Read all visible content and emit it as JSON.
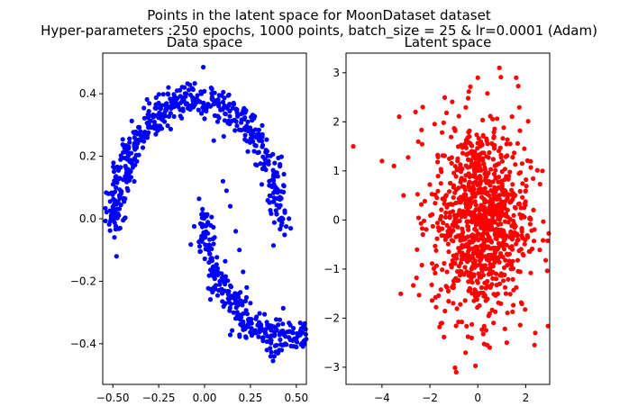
{
  "figure": {
    "suptitle_line1": "Points in the latent space for MoonDataset dataset",
    "suptitle_line2": "Hyper-parameters :250 epochs, 1000 points, batch_size = 25 & lr=0.0001 (Adam)"
  },
  "chart_data": [
    {
      "type": "scatter",
      "title": "Data space",
      "xlabel": "",
      "ylabel": "",
      "xlim": [
        -0.555,
        0.555
      ],
      "ylim": [
        -0.53,
        0.53
      ],
      "xticks": [
        -0.5,
        -0.25,
        0.0,
        0.25,
        0.5
      ],
      "xtick_labels": [
        "−0.50",
        "−0.25",
        "0.00",
        "0.25",
        "0.50"
      ],
      "yticks": [
        -0.4,
        -0.2,
        0.0,
        0.2,
        0.4
      ],
      "ytick_labels": [
        "−0.4",
        "−0.2",
        "0.0",
        "0.2",
        "0.4"
      ],
      "grid": false,
      "color": "#0000ff",
      "description": "Two interleaving half-moons, 1000 points",
      "series": [
        {
          "x": [
            -0.48,
            -0.46,
            -0.44,
            -0.42,
            -0.4,
            -0.38,
            -0.35,
            -0.3,
            -0.25,
            -0.2,
            -0.15,
            -0.1,
            -0.05,
            0.0,
            0.05,
            0.1,
            0.12,
            0.14,
            0.17,
            0.19,
            0.21,
            0.23,
            0.25,
            0.28,
            0.3,
            0.32,
            0.34,
            0.36,
            0.38,
            0.4,
            0.42,
            0.44,
            0.46
          ],
          "y": [
            -0.12,
            -0.03,
            0.06,
            0.14,
            0.21,
            0.24,
            0.28,
            0.33,
            0.37,
            0.4,
            0.41,
            0.4,
            0.37,
            0.32,
            0.25,
            0.12,
            0.09,
            0.04,
            -0.04,
            -0.1,
            -0.17,
            -0.22,
            -0.27,
            -0.32,
            -0.36,
            -0.38,
            -0.42,
            -0.44,
            -0.44,
            -0.43,
            -0.42,
            -0.4,
            -0.38
          ]
        }
      ]
    },
    {
      "type": "scatter",
      "title": "Latent space",
      "xlabel": "",
      "ylabel": "",
      "xlim": [
        -5.5,
        3.0
      ],
      "ylim": [
        -3.35,
        3.4
      ],
      "xticks": [
        -4,
        -2,
        0,
        2
      ],
      "xtick_labels": [
        "−4",
        "−2",
        "0",
        "2"
      ],
      "yticks": [
        -3,
        -2,
        -1,
        0,
        1,
        2,
        3
      ],
      "ytick_labels": [
        "−3",
        "−2",
        "−1",
        "0",
        "1",
        "2",
        "3"
      ],
      "grid": false,
      "color": "#ff0000",
      "description": "Roughly Gaussian cloud of 1000 points centered near (0,0)",
      "series": [
        {
          "x": [
            -5.2,
            -4.0,
            -3.5,
            -3.1,
            -2.6,
            -2.3,
            0.9,
            -0.9,
            0.0,
            2.4,
            2.7,
            1.6,
            -1.5,
            0.5
          ],
          "y": [
            1.5,
            1.2,
            1.1,
            0.5,
            2.2,
            2.3,
            3.1,
            -3.1,
            2.9,
            -2.3,
            1.0,
            2.9,
            -2.1,
            -2.6
          ]
        }
      ]
    }
  ]
}
